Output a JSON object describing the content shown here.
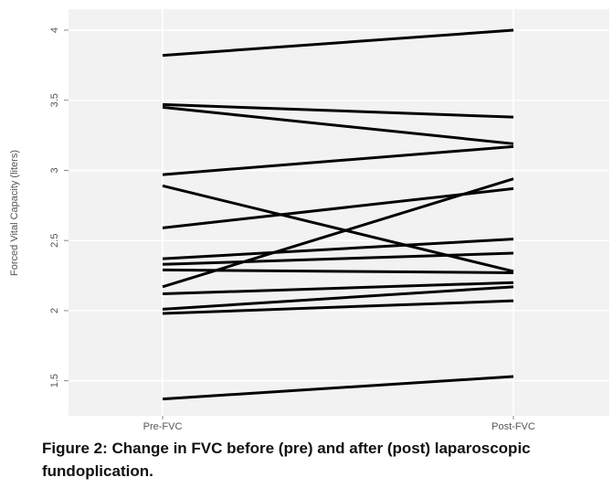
{
  "chart_data": {
    "type": "slope",
    "y_label": "Forced Vital Capacity (liters)",
    "categories": [
      "Pre-FVC",
      "Post-FVC"
    ],
    "color": "#000000",
    "series": [
      {
        "values": [
          3.82,
          4.0
        ]
      },
      {
        "values": [
          3.47,
          3.38
        ]
      },
      {
        "values": [
          3.45,
          3.19
        ]
      },
      {
        "values": [
          2.97,
          3.17
        ]
      },
      {
        "values": [
          2.89,
          2.28
        ]
      },
      {
        "values": [
          2.59,
          2.87
        ]
      },
      {
        "values": [
          2.37,
          2.51
        ]
      },
      {
        "values": [
          2.33,
          2.41
        ]
      },
      {
        "values": [
          2.29,
          2.27
        ]
      },
      {
        "values": [
          2.17,
          2.94
        ]
      },
      {
        "values": [
          2.12,
          2.2
        ]
      },
      {
        "values": [
          2.01,
          2.17
        ]
      },
      {
        "values": [
          1.98,
          2.07
        ]
      },
      {
        "values": [
          1.37,
          1.53
        ]
      }
    ],
    "ylim": [
      1.25,
      4.15
    ],
    "yticks": [
      1.5,
      2,
      2.5,
      3,
      3.5,
      4
    ],
    "grid": true,
    "caption": "Figure 2: Change in FVC before (pre) and after (post) laparoscopic fundoplication."
  }
}
